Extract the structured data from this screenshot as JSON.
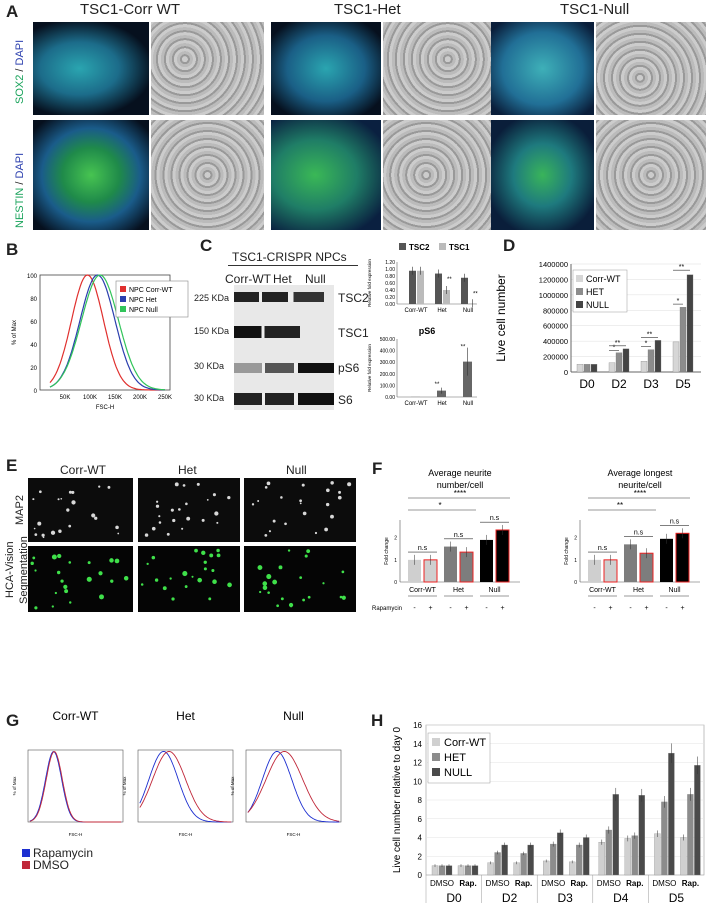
{
  "panelA": {
    "letter": "A",
    "titles": [
      "TSC1-Corr WT",
      "TSC1-Het",
      "TSC1-Null"
    ],
    "row1_marker": "SOX2",
    "row2_marker": "NESTIN",
    "dapi": "DAPI",
    "slash": " / "
  },
  "panelB": {
    "letter": "B",
    "ylabel": "% of Max",
    "xlabel": "FSC-H",
    "xticks": [
      "50K",
      "100K",
      "150K",
      "200K",
      "250K"
    ],
    "yticks": [
      "0",
      "20",
      "40",
      "60",
      "80",
      "100"
    ],
    "legend": [
      {
        "label": "NPC Corr-WT",
        "color": "#e0302e"
      },
      {
        "label": "NPC Het",
        "color": "#2b3fae"
      },
      {
        "label": "NPC Null",
        "color": "#31c45a"
      }
    ]
  },
  "panelC": {
    "letter": "C",
    "title": "TSC1-CRISPR NPCs",
    "lanes": [
      "Corr-WT",
      "Het",
      "Null"
    ],
    "mw": [
      "225 KDa",
      "150 KDa",
      "30 KDa",
      "30 KDa"
    ],
    "proteins": [
      "TSC2",
      "TSC1",
      "pS6",
      "S6"
    ],
    "chart1": {
      "type": "bar",
      "ylabel": "Relative fold expression",
      "legend": [
        "TSC2",
        "TSC1"
      ],
      "categories": [
        "Corr-WT",
        "Het",
        "Null"
      ],
      "yticks": [
        "0.00",
        "0.20",
        "0.40",
        "0.60",
        "0.80",
        "1.00",
        "1.20"
      ],
      "series": [
        {
          "name": "TSC2",
          "values": [
            0.95,
            0.87,
            0.75
          ]
        },
        {
          "name": "TSC1",
          "values": [
            0.95,
            0.4,
            0.02
          ]
        }
      ],
      "ylim": [
        0,
        1.2
      ],
      "sig": [
        "**",
        "**"
      ]
    },
    "chart2": {
      "type": "bar",
      "title": "pS6",
      "ylabel": "Relative fold expression",
      "categories": [
        "Corr-WT",
        "Het",
        "Null"
      ],
      "yticks": [
        "0.00",
        "100.00",
        "200.00",
        "300.00",
        "400.00",
        "500.00"
      ],
      "values": [
        1,
        55,
        305
      ],
      "ylim": [
        0,
        500
      ],
      "sig": [
        "**",
        "**"
      ]
    }
  },
  "panelD": {
    "letter": "D",
    "ylabel": "Live cell number",
    "yticks": [
      "0",
      "200000",
      "400000",
      "600000",
      "800000",
      "1000000",
      "1200000",
      "1400000"
    ],
    "categories": [
      "D0",
      "D2",
      "D3",
      "D5"
    ],
    "legend": [
      "Corr-WT",
      "HET",
      "NULL"
    ],
    "colors": [
      "#d6d6d6",
      "#8c8c8c",
      "#444444"
    ],
    "series": [
      {
        "name": "Corr-WT",
        "values": [
          100000,
          120000,
          140000,
          390000
        ]
      },
      {
        "name": "HET",
        "values": [
          100000,
          250000,
          290000,
          840000
        ]
      },
      {
        "name": "NULL",
        "values": [
          100000,
          300000,
          410000,
          1260000
        ]
      }
    ],
    "ylim": [
      0,
      1400000
    ],
    "sig": [
      "*",
      "**",
      "*",
      "**",
      "*",
      "**"
    ]
  },
  "panelE": {
    "letter": "E",
    "columns": [
      "Corr-WT",
      "Het",
      "Null"
    ],
    "row1": "MAP2",
    "row2a": "HCA-Vision",
    "row2b": "Segmentation"
  },
  "panelF": {
    "letter": "F",
    "titles": [
      "Average neurite number/cell",
      "Average longest neurite/cell"
    ],
    "ylabel": "Fold change",
    "yticks": [
      "0",
      "1",
      "2"
    ],
    "groups": [
      "Corr-WT",
      "Het",
      "Null"
    ],
    "rapamycin": "Rapamycin",
    "signs": [
      "-",
      "+",
      "-",
      "+",
      "-",
      "+"
    ],
    "chart1": {
      "values": [
        1.0,
        1.0,
        1.6,
        1.35,
        1.9,
        2.35
      ]
    },
    "chart2": {
      "values": [
        1.0,
        1.0,
        1.7,
        1.3,
        1.95,
        2.2
      ]
    },
    "ns": "n.s",
    "sig1": [
      "****",
      "*"
    ],
    "sig2": [
      "****",
      "**"
    ]
  },
  "panelG": {
    "letter": "G",
    "titles": [
      "Corr-WT",
      "Het",
      "Null"
    ],
    "ylabel": "% of Max",
    "xlabel": "FSC-H",
    "legend": [
      {
        "label": "Rapamycin",
        "color": "#1d2fd0"
      },
      {
        "label": "DMSO",
        "color": "#c0283a"
      }
    ]
  },
  "panelH": {
    "letter": "H",
    "ylabel": "Live cell number relative to day 0",
    "yticks": [
      "0",
      "2",
      "4",
      "6",
      "8",
      "10",
      "12",
      "14",
      "16"
    ],
    "days": [
      "D0",
      "D2",
      "D3",
      "D4",
      "D5"
    ],
    "treat": [
      "DMSO",
      "Rap."
    ],
    "legend": [
      "Corr-WT",
      "HET",
      "NULL"
    ],
    "colors": [
      "#d0d0d0",
      "#8c8c8c",
      "#4a4a4a"
    ],
    "values": [
      [
        1,
        1,
        1,
        1,
        1,
        1
      ],
      [
        1.3,
        2.4,
        3.2,
        1.3,
        2.3,
        3.2
      ],
      [
        1.5,
        3.3,
        4.5,
        1.4,
        3.2,
        4.0
      ],
      [
        3.5,
        4.8,
        8.6,
        3.9,
        4.2,
        8.5
      ],
      [
        4.4,
        7.8,
        13.0,
        4.0,
        8.6,
        11.7
      ]
    ],
    "ylim": [
      0,
      16
    ]
  }
}
